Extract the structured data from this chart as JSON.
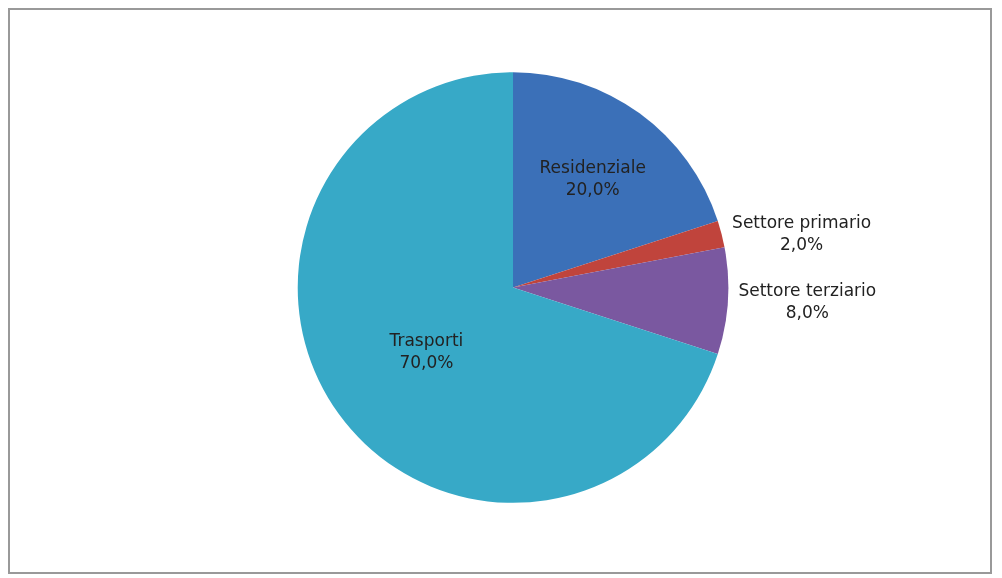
{
  "chart_data": {
    "type": "pie",
    "categories": [
      "Residenziale",
      "Settore primario",
      "Settore terziario",
      "Trasporti"
    ],
    "values": [
      20,
      2,
      8,
      70
    ],
    "value_labels": [
      "20,0%",
      "2,0%",
      "8,0%",
      "70,0%"
    ],
    "colors": [
      "#3b70b8",
      "#c0443c",
      "#7a58a0",
      "#37a9c7"
    ],
    "legend": false
  }
}
